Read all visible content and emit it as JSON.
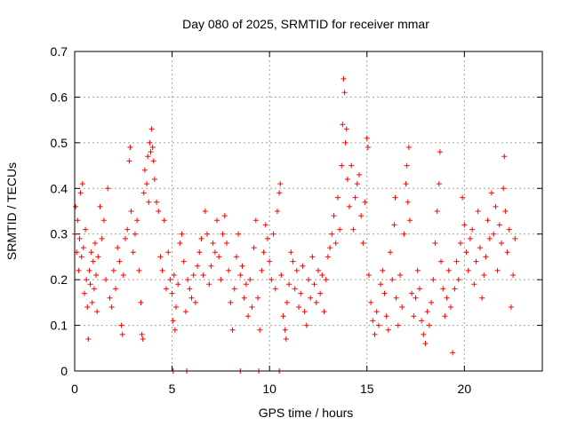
{
  "chart_data": {
    "type": "scatter",
    "title": "Day 080 of 2025, SRMTID for receiver mmar",
    "xlabel": "GPS time / hours",
    "ylabel": "SRMTID / TECUs",
    "xlim": [
      0,
      24
    ],
    "ylim": [
      0,
      0.7
    ],
    "xticks": [
      0,
      5,
      10,
      15,
      20
    ],
    "yticks": [
      0,
      0.1,
      0.2,
      0.3,
      0.4,
      0.5,
      0.6,
      0.7
    ],
    "xtick_labels": [
      "0",
      "5",
      "10",
      "15",
      "20"
    ],
    "ytick_labels": [
      "0",
      "0.1",
      "0.2",
      "0.3",
      "0.4",
      "0.5",
      "0.6",
      "0.7"
    ],
    "grid": true,
    "marker": "+",
    "series": [
      {
        "name": "SRMTID",
        "color": "#ff0000",
        "points": [
          [
            0.0,
            0.3
          ],
          [
            0.05,
            0.36
          ],
          [
            0.1,
            0.26
          ],
          [
            0.15,
            0.33
          ],
          [
            0.2,
            0.22
          ],
          [
            0.25,
            0.29
          ],
          [
            0.3,
            0.39
          ],
          [
            0.35,
            0.25
          ],
          [
            0.4,
            0.41
          ],
          [
            0.45,
            0.27
          ],
          [
            0.5,
            0.17
          ],
          [
            0.55,
            0.31
          ],
          [
            0.6,
            0.2
          ],
          [
            0.65,
            0.14
          ],
          [
            0.7,
            0.07
          ],
          [
            0.75,
            0.22
          ],
          [
            0.8,
            0.19
          ],
          [
            0.85,
            0.26
          ],
          [
            0.9,
            0.15
          ],
          [
            0.95,
            0.24
          ],
          [
            1.0,
            0.18
          ],
          [
            1.05,
            0.28
          ],
          [
            1.1,
            0.21
          ],
          [
            1.15,
            0.13
          ],
          [
            1.2,
            0.25
          ],
          [
            1.3,
            0.36
          ],
          [
            1.4,
            0.29
          ],
          [
            1.5,
            0.33
          ],
          [
            1.6,
            0.2
          ],
          [
            1.7,
            0.4
          ],
          [
            1.8,
            0.16
          ],
          [
            1.9,
            0.14
          ],
          [
            2.0,
            0.22
          ],
          [
            2.1,
            0.18
          ],
          [
            2.2,
            0.27
          ],
          [
            2.3,
            0.24
          ],
          [
            2.4,
            0.1
          ],
          [
            2.45,
            0.08
          ],
          [
            2.5,
            0.21
          ],
          [
            2.6,
            0.29
          ],
          [
            2.7,
            0.31
          ],
          [
            2.8,
            0.46
          ],
          [
            2.85,
            0.49
          ],
          [
            2.9,
            0.35
          ],
          [
            3.0,
            0.26
          ],
          [
            3.1,
            0.3
          ],
          [
            3.2,
            0.33
          ],
          [
            3.3,
            0.22
          ],
          [
            3.4,
            0.15
          ],
          [
            3.45,
            0.08
          ],
          [
            3.5,
            0.07
          ],
          [
            3.55,
            0.39
          ],
          [
            3.6,
            0.44
          ],
          [
            3.7,
            0.41
          ],
          [
            3.75,
            0.47
          ],
          [
            3.8,
            0.37
          ],
          [
            3.85,
            0.5
          ],
          [
            3.9,
            0.48
          ],
          [
            3.95,
            0.53
          ],
          [
            4.0,
            0.49
          ],
          [
            4.05,
            0.46
          ],
          [
            4.1,
            0.42
          ],
          [
            4.2,
            0.37
          ],
          [
            4.3,
            0.35
          ],
          [
            4.4,
            0.25
          ],
          [
            4.5,
            0.22
          ],
          [
            4.6,
            0.33
          ],
          [
            4.7,
            0.18
          ],
          [
            4.8,
            0.26
          ],
          [
            4.9,
            0.2
          ],
          [
            5.0,
            0.17
          ],
          [
            5.05,
            0.11
          ],
          [
            5.1,
            0.21
          ],
          [
            5.15,
            0.09
          ],
          [
            5.2,
            0.14
          ],
          [
            5.3,
            0.19
          ],
          [
            5.4,
            0.28
          ],
          [
            5.5,
            0.3
          ],
          [
            5.6,
            0.24
          ],
          [
            5.7,
            0.13
          ],
          [
            5.8,
            0.2
          ],
          [
            5.9,
            0.18
          ],
          [
            6.0,
            0.16
          ],
          [
            6.1,
            0.21
          ],
          [
            6.2,
            0.15
          ],
          [
            6.3,
            0.23
          ],
          [
            6.4,
            0.26
          ],
          [
            6.5,
            0.29
          ],
          [
            6.6,
            0.21
          ],
          [
            6.7,
            0.35
          ],
          [
            6.8,
            0.3
          ],
          [
            6.9,
            0.19
          ],
          [
            7.0,
            0.23
          ],
          [
            7.1,
            0.28
          ],
          [
            7.2,
            0.26
          ],
          [
            7.3,
            0.33
          ],
          [
            7.4,
            0.25
          ],
          [
            7.5,
            0.2
          ],
          [
            7.6,
            0.3
          ],
          [
            7.7,
            0.34
          ],
          [
            7.8,
            0.28
          ],
          [
            7.9,
            0.22
          ],
          [
            8.0,
            0.15
          ],
          [
            8.1,
            0.09
          ],
          [
            8.2,
            0.18
          ],
          [
            8.3,
            0.25
          ],
          [
            8.4,
            0.3
          ],
          [
            8.5,
            0.21
          ],
          [
            8.6,
            0.23
          ],
          [
            8.7,
            0.16
          ],
          [
            8.8,
            0.19
          ],
          [
            8.9,
            0.12
          ],
          [
            9.0,
            0.2
          ],
          [
            9.1,
            0.14
          ],
          [
            9.2,
            0.27
          ],
          [
            9.3,
            0.33
          ],
          [
            9.4,
            0.16
          ],
          [
            9.5,
            0.09
          ],
          [
            9.6,
            0.22
          ],
          [
            9.7,
            0.26
          ],
          [
            9.8,
            0.32
          ],
          [
            9.9,
            0.29
          ],
          [
            10.0,
            0.24
          ],
          [
            10.1,
            0.2
          ],
          [
            10.2,
            0.3
          ],
          [
            10.3,
            0.18
          ],
          [
            10.4,
            0.35
          ],
          [
            10.5,
            0.39
          ],
          [
            10.55,
            0.41
          ],
          [
            10.6,
            0.21
          ],
          [
            10.7,
            0.12
          ],
          [
            10.8,
            0.09
          ],
          [
            10.85,
            0.07
          ],
          [
            10.9,
            0.15
          ],
          [
            11.0,
            0.19
          ],
          [
            11.1,
            0.26
          ],
          [
            11.2,
            0.24
          ],
          [
            11.3,
            0.18
          ],
          [
            11.4,
            0.22
          ],
          [
            11.5,
            0.14
          ],
          [
            11.6,
            0.17
          ],
          [
            11.7,
            0.23
          ],
          [
            11.8,
            0.13
          ],
          [
            11.9,
            0.1
          ],
          [
            12.0,
            0.2
          ],
          [
            12.1,
            0.16
          ],
          [
            12.2,
            0.25
          ],
          [
            12.3,
            0.19
          ],
          [
            12.4,
            0.15
          ],
          [
            12.5,
            0.22
          ],
          [
            12.6,
            0.17
          ],
          [
            12.7,
            0.21
          ],
          [
            12.8,
            0.13
          ],
          [
            12.9,
            0.2
          ],
          [
            13.0,
            0.25
          ],
          [
            13.1,
            0.27
          ],
          [
            13.2,
            0.3
          ],
          [
            13.3,
            0.34
          ],
          [
            13.4,
            0.28
          ],
          [
            13.5,
            0.38
          ],
          [
            13.6,
            0.31
          ],
          [
            13.7,
            0.45
          ],
          [
            13.75,
            0.54
          ],
          [
            13.8,
            0.64
          ],
          [
            13.85,
            0.61
          ],
          [
            13.9,
            0.5
          ],
          [
            13.95,
            0.53
          ],
          [
            14.0,
            0.42
          ],
          [
            14.1,
            0.36
          ],
          [
            14.2,
            0.45
          ],
          [
            14.3,
            0.31
          ],
          [
            14.4,
            0.38
          ],
          [
            14.5,
            0.41
          ],
          [
            14.6,
            0.43
          ],
          [
            14.7,
            0.34
          ],
          [
            14.8,
            0.28
          ],
          [
            14.9,
            0.37
          ],
          [
            15.0,
            0.51
          ],
          [
            15.05,
            0.49
          ],
          [
            15.1,
            0.21
          ],
          [
            15.2,
            0.15
          ],
          [
            15.3,
            0.11
          ],
          [
            15.4,
            0.08
          ],
          [
            15.5,
            0.13
          ],
          [
            15.6,
            0.1
          ],
          [
            15.7,
            0.19
          ],
          [
            15.8,
            0.22
          ],
          [
            15.9,
            0.17
          ],
          [
            16.0,
            0.12
          ],
          [
            16.1,
            0.09
          ],
          [
            16.2,
            0.26
          ],
          [
            16.3,
            0.2
          ],
          [
            16.4,
            0.32
          ],
          [
            16.45,
            0.38
          ],
          [
            16.5,
            0.16
          ],
          [
            16.6,
            0.1
          ],
          [
            16.7,
            0.21
          ],
          [
            16.8,
            0.14
          ],
          [
            16.9,
            0.3
          ],
          [
            17.0,
            0.41
          ],
          [
            17.05,
            0.45
          ],
          [
            17.1,
            0.37
          ],
          [
            17.15,
            0.49
          ],
          [
            17.2,
            0.33
          ],
          [
            17.3,
            0.17
          ],
          [
            17.4,
            0.12
          ],
          [
            17.5,
            0.16
          ],
          [
            17.6,
            0.22
          ],
          [
            17.7,
            0.18
          ],
          [
            17.8,
            0.11
          ],
          [
            17.9,
            0.08
          ],
          [
            18.0,
            0.06
          ],
          [
            18.1,
            0.13
          ],
          [
            18.2,
            0.1
          ],
          [
            18.3,
            0.15
          ],
          [
            18.4,
            0.2
          ],
          [
            18.5,
            0.28
          ],
          [
            18.6,
            0.35
          ],
          [
            18.7,
            0.41
          ],
          [
            18.75,
            0.48
          ],
          [
            18.8,
            0.24
          ],
          [
            18.9,
            0.18
          ],
          [
            19.0,
            0.12
          ],
          [
            19.1,
            0.16
          ],
          [
            19.2,
            0.22
          ],
          [
            19.3,
            0.14
          ],
          [
            19.4,
            0.04
          ],
          [
            19.5,
            0.18
          ],
          [
            19.6,
            0.24
          ],
          [
            19.7,
            0.2
          ],
          [
            19.8,
            0.28
          ],
          [
            19.9,
            0.38
          ],
          [
            20.0,
            0.32
          ],
          [
            20.1,
            0.26
          ],
          [
            20.2,
            0.22
          ],
          [
            20.3,
            0.29
          ],
          [
            20.4,
            0.31
          ],
          [
            20.5,
            0.19
          ],
          [
            20.6,
            0.24
          ],
          [
            20.7,
            0.35
          ],
          [
            20.8,
            0.27
          ],
          [
            20.9,
            0.16
          ],
          [
            21.0,
            0.21
          ],
          [
            21.1,
            0.25
          ],
          [
            21.2,
            0.33
          ],
          [
            21.3,
            0.29
          ],
          [
            21.4,
            0.39
          ],
          [
            21.5,
            0.3
          ],
          [
            21.6,
            0.36
          ],
          [
            21.7,
            0.22
          ],
          [
            21.8,
            0.32
          ],
          [
            21.9,
            0.28
          ],
          [
            22.0,
            0.4
          ],
          [
            22.05,
            0.47
          ],
          [
            22.1,
            0.35
          ],
          [
            22.2,
            0.26
          ],
          [
            22.3,
            0.31
          ],
          [
            22.4,
            0.14
          ],
          [
            22.5,
            0.21
          ],
          [
            22.6,
            0.29
          ],
          [
            5.05,
            0.0
          ],
          [
            5.75,
            0.0
          ],
          [
            8.5,
            0.0
          ],
          [
            9.45,
            0.0
          ],
          [
            10.5,
            0.0
          ]
        ]
      }
    ]
  }
}
